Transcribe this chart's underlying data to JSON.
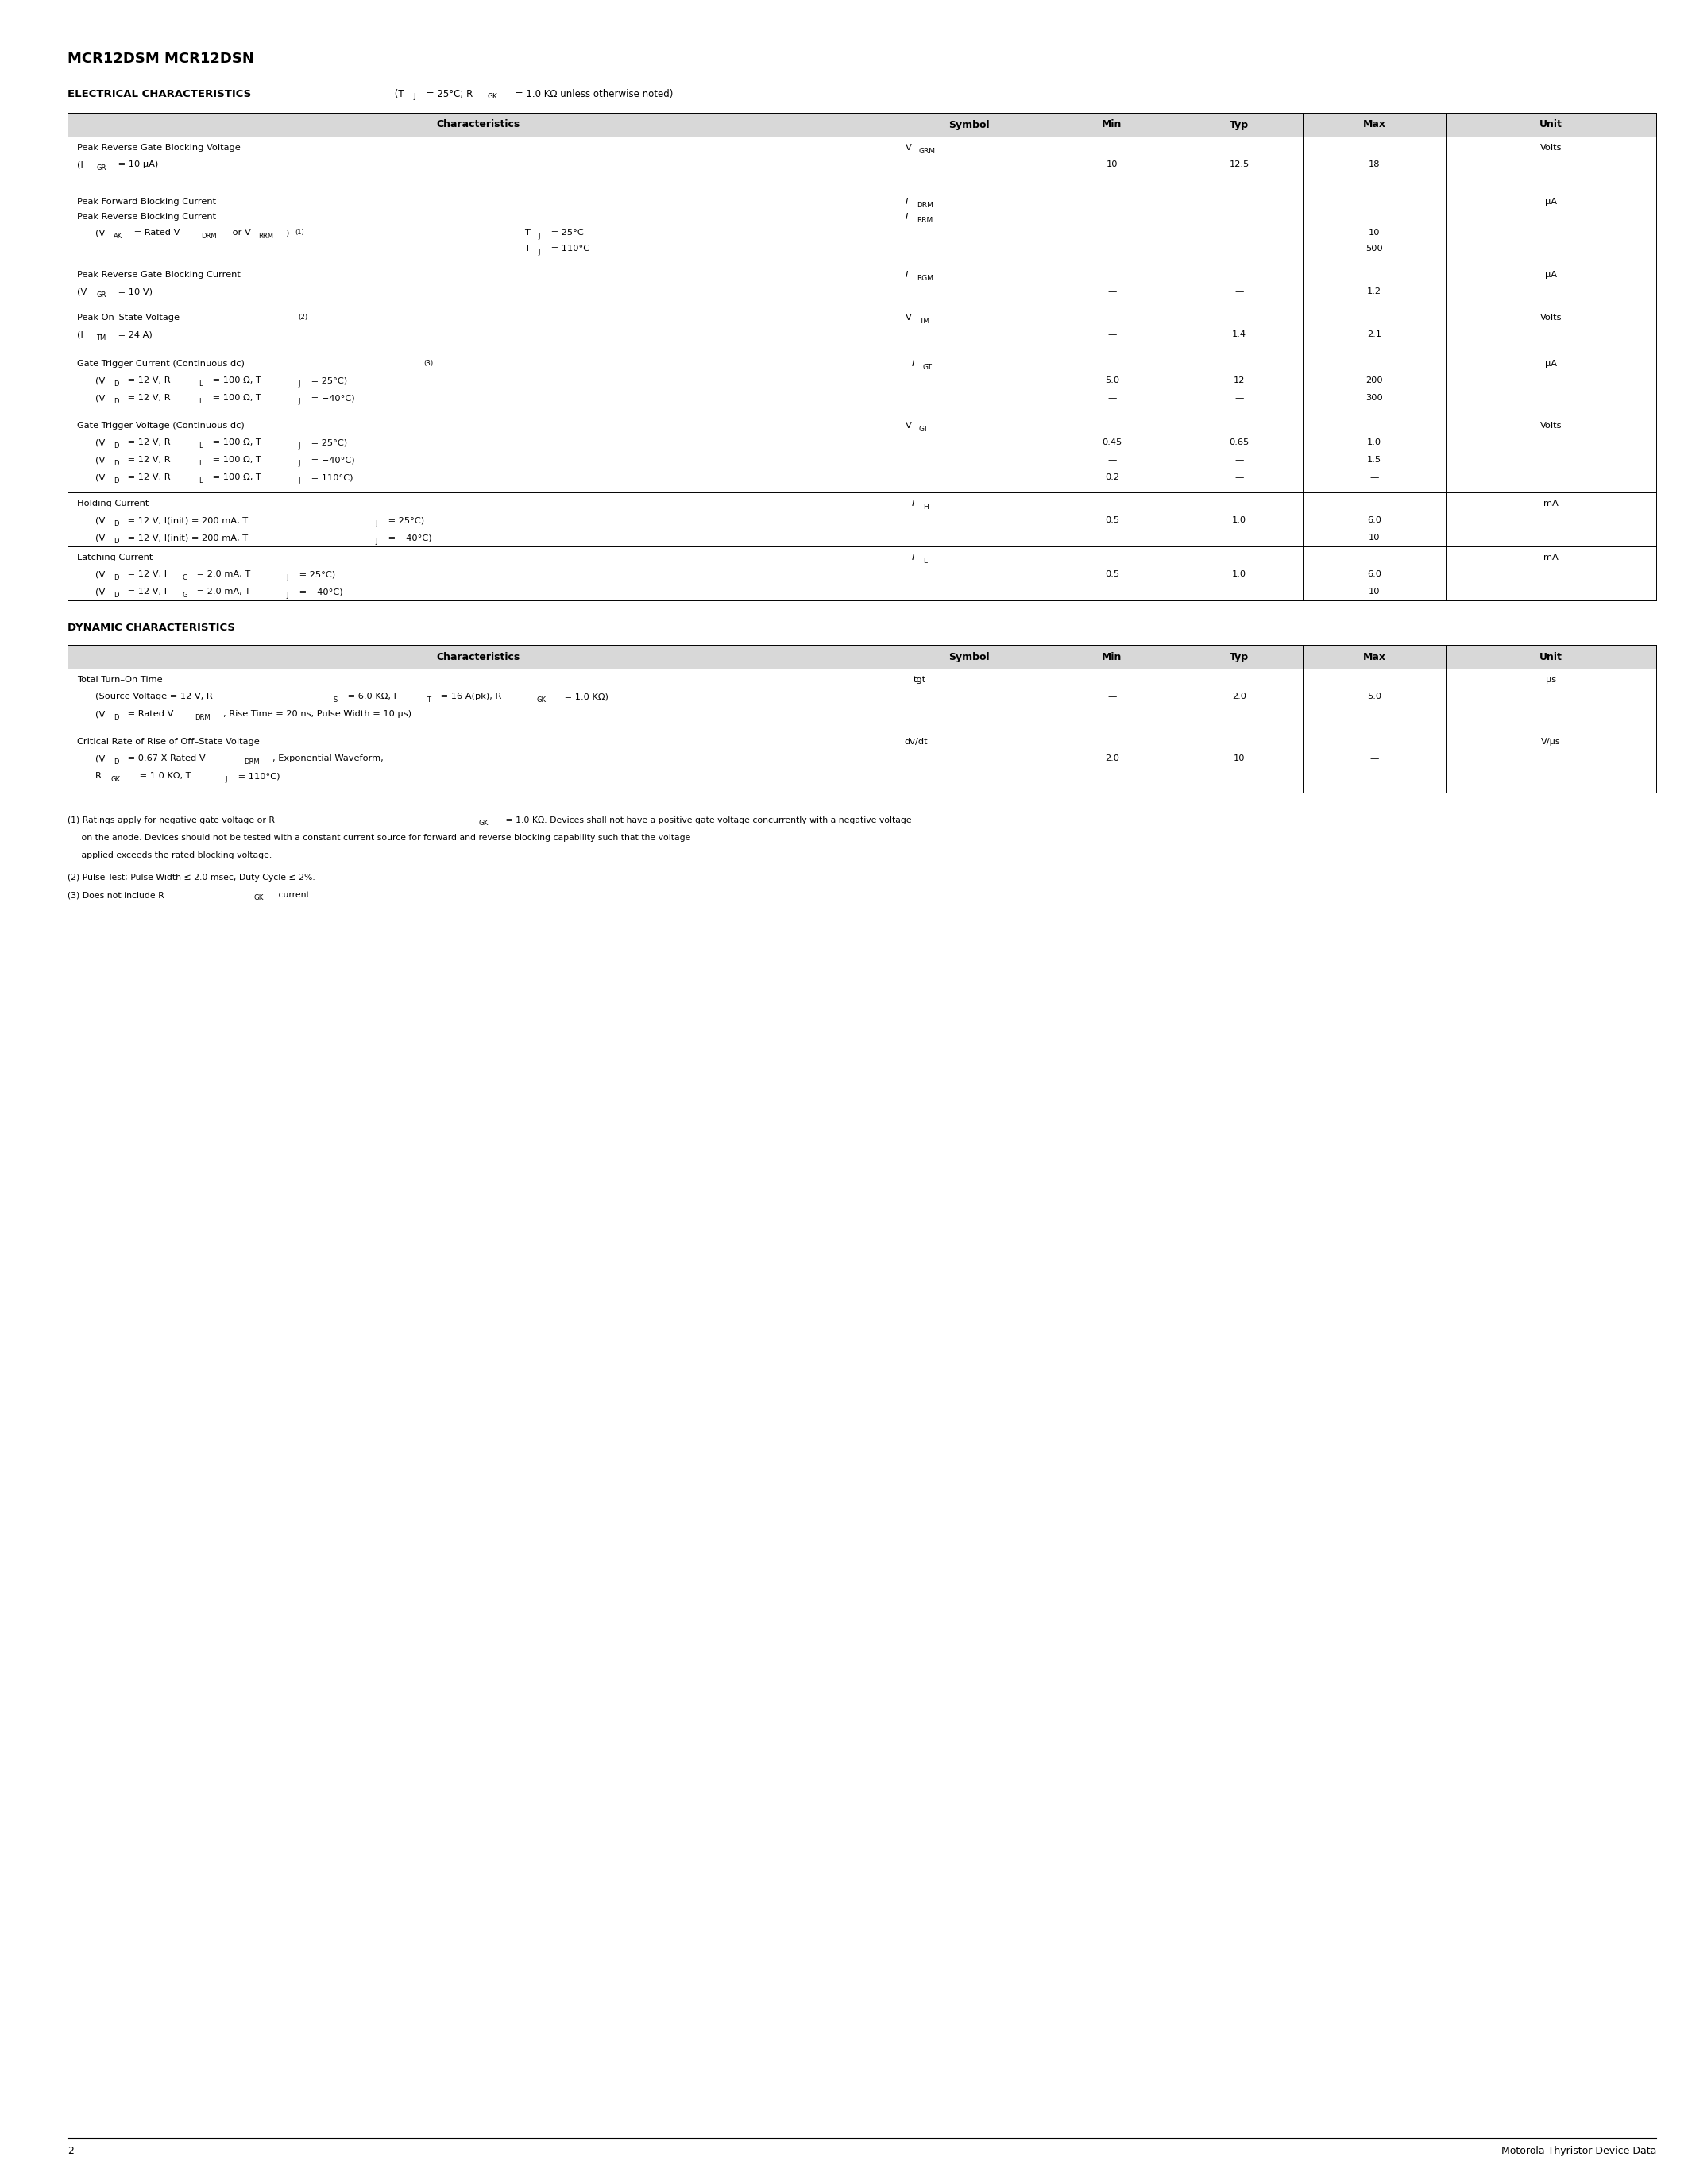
{
  "title": "MCR12DSM MCR12DSN",
  "page_number": "2",
  "footer_text": "Motorola Thyristor Device Data",
  "bg_color": "#ffffff",
  "table_header_color": "#d8d8d8",
  "border_color": "#000000"
}
